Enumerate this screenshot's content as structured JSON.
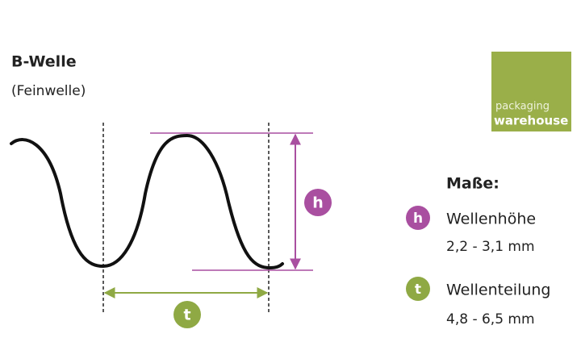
{
  "header": {
    "title": "B-Welle",
    "subtitle": "(Feinwelle)"
  },
  "logo": {
    "line1": "packaging",
    "line2": "warehouse"
  },
  "diagram": {
    "height_label": "h",
    "pitch_label": "t"
  },
  "legend": {
    "title": "Maße:",
    "items": [
      {
        "badge": "h",
        "name": "Wellenhöhe",
        "range": "2,2 - 3,1 mm"
      },
      {
        "badge": "t",
        "name": "Wellenteilung",
        "range": "4,8 - 6,5 mm"
      }
    ]
  }
}
